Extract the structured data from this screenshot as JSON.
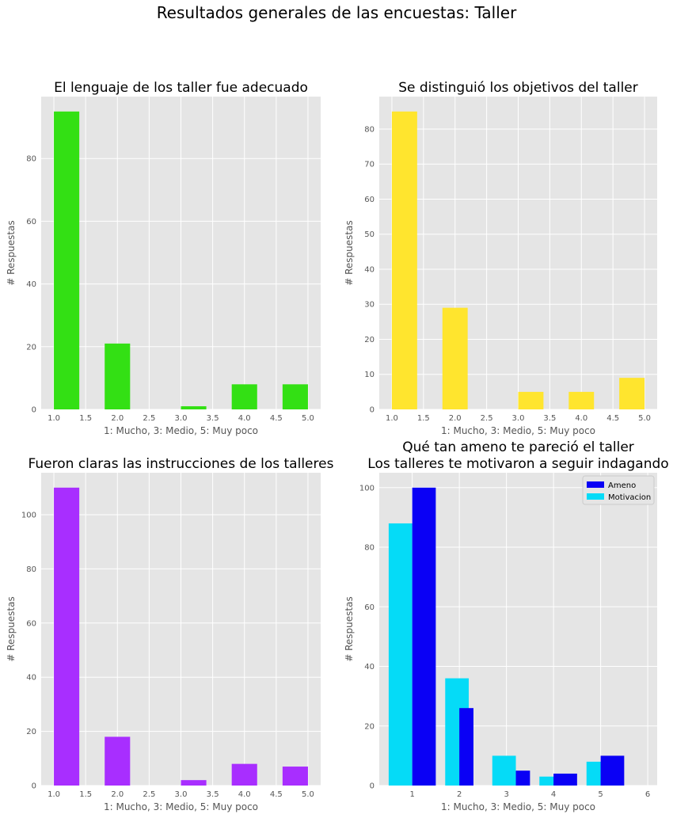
{
  "figure": {
    "suptitle": "Resultados generales de las encuestas: Taller",
    "colors": {
      "background": "#e5e5e5",
      "grid": "#ffffff",
      "tick_text": "#555555",
      "label_text": "#555555"
    }
  },
  "chart_data": [
    {
      "type": "bar",
      "title": "El lenguaje de los taller fue adecuado",
      "xlabel": "1: Mucho, 3: Medio, 5: Muy poco",
      "ylabel": "# Respuestas",
      "xlim": [
        0.8,
        5.2
      ],
      "ylim": [
        0,
        99.75
      ],
      "xticks": [
        1.0,
        1.5,
        2.0,
        2.5,
        3.0,
        3.5,
        4.0,
        4.5,
        5.0
      ],
      "xtick_labels": [
        "1.0",
        "1.5",
        "2.0",
        "2.5",
        "3.0",
        "3.5",
        "4.0",
        "4.5",
        "5.0"
      ],
      "yticks": [
        0,
        20,
        40,
        60,
        80
      ],
      "ytick_labels": [
        "0",
        "20",
        "40",
        "60",
        "80"
      ],
      "grid": true,
      "color": "#33e014",
      "bars": [
        {
          "x0": 1.0,
          "x1": 1.4,
          "value": 95
        },
        {
          "x0": 1.8,
          "x1": 2.2,
          "value": 21
        },
        {
          "x0": 3.0,
          "x1": 3.4,
          "value": 1
        },
        {
          "x0": 3.8,
          "x1": 4.2,
          "value": 8
        },
        {
          "x0": 4.6,
          "x1": 5.0,
          "value": 8
        }
      ]
    },
    {
      "type": "bar",
      "title": "Se distinguió los objetivos del taller",
      "xlabel": "1: Mucho, 3: Medio, 5: Muy poco",
      "ylabel": "# Respuestas",
      "xlim": [
        0.8,
        5.2
      ],
      "ylim": [
        0,
        89.25
      ],
      "xticks": [
        1.0,
        1.5,
        2.0,
        2.5,
        3.0,
        3.5,
        4.0,
        4.5,
        5.0
      ],
      "xtick_labels": [
        "1.0",
        "1.5",
        "2.0",
        "2.5",
        "3.0",
        "3.5",
        "4.0",
        "4.5",
        "5.0"
      ],
      "yticks": [
        0,
        10,
        20,
        30,
        40,
        50,
        60,
        70,
        80
      ],
      "ytick_labels": [
        "0",
        "10",
        "20",
        "30",
        "40",
        "50",
        "60",
        "70",
        "80"
      ],
      "grid": true,
      "color": "#ffe52e",
      "bars": [
        {
          "x0": 1.0,
          "x1": 1.4,
          "value": 85
        },
        {
          "x0": 1.8,
          "x1": 2.2,
          "value": 29
        },
        {
          "x0": 3.0,
          "x1": 3.4,
          "value": 5
        },
        {
          "x0": 3.8,
          "x1": 4.2,
          "value": 5
        },
        {
          "x0": 4.6,
          "x1": 5.0,
          "value": 9
        }
      ]
    },
    {
      "type": "bar",
      "title": "Fueron claras las instrucciones de los talleres",
      "xlabel": "1: Mucho, 3: Medio, 5: Muy poco",
      "ylabel": "# Respuestas",
      "xlim": [
        0.8,
        5.2
      ],
      "ylim": [
        0,
        115.5
      ],
      "xticks": [
        1.0,
        1.5,
        2.0,
        2.5,
        3.0,
        3.5,
        4.0,
        4.5,
        5.0
      ],
      "xtick_labels": [
        "1.0",
        "1.5",
        "2.0",
        "2.5",
        "3.0",
        "3.5",
        "4.0",
        "4.5",
        "5.0"
      ],
      "yticks": [
        0,
        20,
        40,
        60,
        80,
        100
      ],
      "ytick_labels": [
        "0",
        "20",
        "40",
        "60",
        "80",
        "100"
      ],
      "grid": true,
      "color": "#a82eff",
      "bars": [
        {
          "x0": 1.0,
          "x1": 1.4,
          "value": 110
        },
        {
          "x0": 1.8,
          "x1": 2.2,
          "value": 18
        },
        {
          "x0": 3.0,
          "x1": 3.4,
          "value": 2
        },
        {
          "x0": 3.8,
          "x1": 4.2,
          "value": 8
        },
        {
          "x0": 4.6,
          "x1": 5.0,
          "value": 7
        }
      ]
    },
    {
      "type": "bar",
      "title": "Qué tan ameno te pareció el taller\nLos talleres te motivaron a seguir indagando",
      "xlabel": "1: Mucho, 3: Medio, 5: Muy poco",
      "ylabel": "# Respuestas",
      "xlim": [
        0.3,
        6.2
      ],
      "ylim": [
        0,
        105
      ],
      "xticks": [
        1,
        2,
        3,
        4,
        5,
        6
      ],
      "xtick_labels": [
        "1",
        "2",
        "3",
        "4",
        "5",
        "6"
      ],
      "yticks": [
        0,
        20,
        40,
        60,
        80,
        100
      ],
      "ytick_labels": [
        "0",
        "20",
        "40",
        "60",
        "80",
        "100"
      ],
      "grid": true,
      "legend": "top-right",
      "series": [
        {
          "name": "Ameno",
          "color": "#0a00f5",
          "bars": [
            {
              "x0": 1.0,
              "x1": 1.5,
              "value": 100
            },
            {
              "x0": 2.0,
              "x1": 2.3,
              "value": 26
            },
            {
              "x0": 3.2,
              "x1": 3.5,
              "value": 5
            },
            {
              "x0": 4.0,
              "x1": 4.5,
              "value": 4
            },
            {
              "x0": 5.0,
              "x1": 5.5,
              "value": 10
            }
          ]
        },
        {
          "name": "Motivacion",
          "color": "#05dbf7",
          "bars": [
            {
              "x0": 0.5,
              "x1": 1.0,
              "value": 88
            },
            {
              "x0": 1.7,
              "x1": 2.2,
              "value": 36
            },
            {
              "x0": 2.7,
              "x1": 3.2,
              "value": 10
            },
            {
              "x0": 3.7,
              "x1": 4.2,
              "value": 3
            },
            {
              "x0": 4.7,
              "x1": 5.2,
              "value": 8
            }
          ]
        }
      ]
    }
  ]
}
